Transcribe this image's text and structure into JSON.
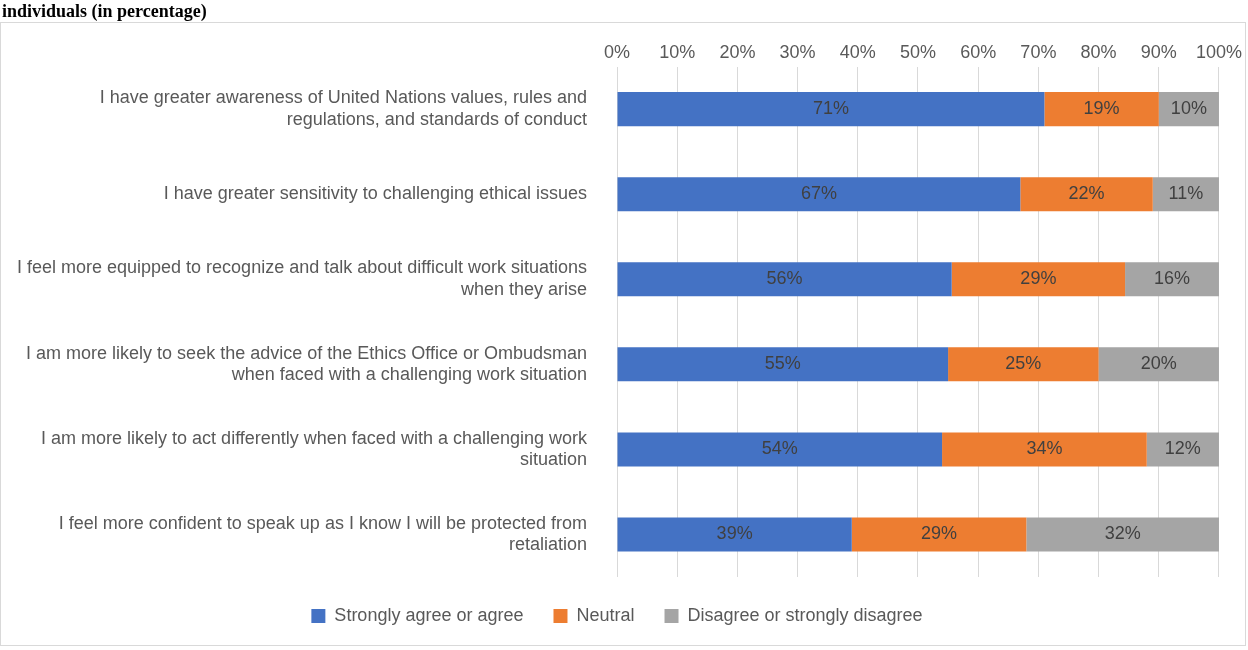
{
  "chart_data": {
    "type": "bar",
    "orientation": "horizontal",
    "stacked": true,
    "title": "individuals (in percentage)",
    "categories": [
      "I have greater awareness of United Nations values, rules and regulations, and standards of conduct",
      "I have greater sensitivity to challenging ethical issues",
      "I feel more equipped to recognize and talk about difficult work situations when they arise",
      "I am more likely to seek the advice of the Ethics Office or Ombudsman when faced with a challenging work situation",
      "I am more likely to act differently when faced with a challenging work situation",
      "I feel more confident to speak up as I know I will be protected from retaliation"
    ],
    "series": [
      {
        "name": "Strongly agree or agree",
        "color": "#4472c4",
        "values": [
          71,
          67,
          55.6,
          55,
          54,
          39
        ],
        "value_labels": [
          "71%",
          "67%",
          "56%",
          "55%",
          "54%",
          "39%"
        ]
      },
      {
        "name": "Neutral",
        "color": "#ed7d31",
        "values": [
          19,
          22,
          28.8,
          25,
          34,
          29
        ],
        "value_labels": [
          "19%",
          "22%",
          "29%",
          "25%",
          "34%",
          "29%"
        ]
      },
      {
        "name": "Disagree or strongly disagree",
        "color": "#a5a5a5",
        "values": [
          10,
          11,
          15.6,
          20,
          12,
          32
        ],
        "value_labels": [
          "10%",
          "11%",
          "16%",
          "20%",
          "12%",
          "32%"
        ]
      }
    ],
    "xlim": [
      0,
      100
    ],
    "xticks": [
      {
        "value": 0,
        "label": "0%"
      },
      {
        "value": 10,
        "label": "10%"
      },
      {
        "value": 20,
        "label": "20%"
      },
      {
        "value": 30,
        "label": "30%"
      },
      {
        "value": 40,
        "label": "40%"
      },
      {
        "value": 50,
        "label": "50%"
      },
      {
        "value": 60,
        "label": "60%"
      },
      {
        "value": 70,
        "label": "70%"
      },
      {
        "value": 80,
        "label": "80%"
      },
      {
        "value": 90,
        "label": "90%"
      },
      {
        "value": 100,
        "label": "100%"
      }
    ],
    "grid": "x",
    "legend": "bottom"
  }
}
